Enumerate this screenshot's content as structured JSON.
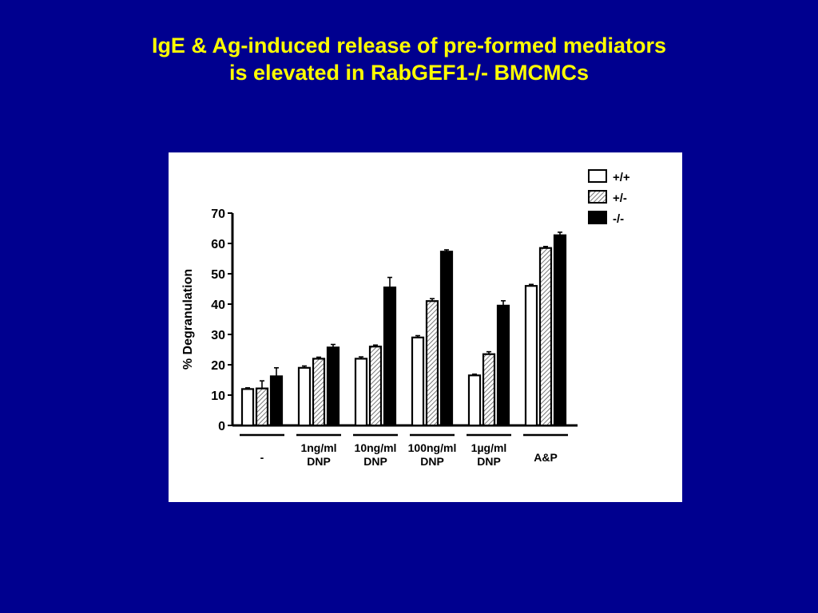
{
  "slide": {
    "title_line1": "IgE & Ag-induced release of pre-formed mediators",
    "title_line2": "is elevated in RabGEF1-/- BMCMCs"
  },
  "colors": {
    "background": "#00008f",
    "title": "#ffff00",
    "panel": "#ffffff",
    "bar_wt": "#ffffff",
    "bar_het": "#bdbdbd",
    "bar_ko": "#000000"
  },
  "chart_data": {
    "type": "bar",
    "ylabel": "% Degranulation",
    "ylim": [
      0,
      70
    ],
    "yticks": [
      0,
      10,
      20,
      30,
      40,
      50,
      60,
      70
    ],
    "legend_position": "top-right",
    "categories": [
      [
        "-"
      ],
      [
        "1ng/ml",
        "DNP"
      ],
      [
        "10ng/ml",
        "DNP"
      ],
      [
        "100ng/ml",
        "DNP"
      ],
      [
        "1µg/ml",
        "DNP"
      ],
      [
        "A&P"
      ]
    ],
    "series": [
      {
        "name": "+/+",
        "pattern": "open",
        "values": [
          12,
          19,
          22,
          29,
          16.5,
          46
        ],
        "errors": [
          0.4,
          0.6,
          0.6,
          0.6,
          0.4,
          0.5
        ]
      },
      {
        "name": "+/-",
        "pattern": "hatched",
        "values": [
          12.2,
          22,
          26,
          41,
          23.5,
          58.5
        ],
        "errors": [
          2.5,
          0.5,
          0.5,
          0.8,
          0.8,
          0.5
        ]
      },
      {
        "name": "-/-",
        "pattern": "filled",
        "values": [
          16.2,
          25.7,
          45.5,
          57.3,
          39.5,
          62.7
        ],
        "errors": [
          2.8,
          1,
          3.3,
          0.6,
          1.6,
          1
        ]
      }
    ]
  }
}
